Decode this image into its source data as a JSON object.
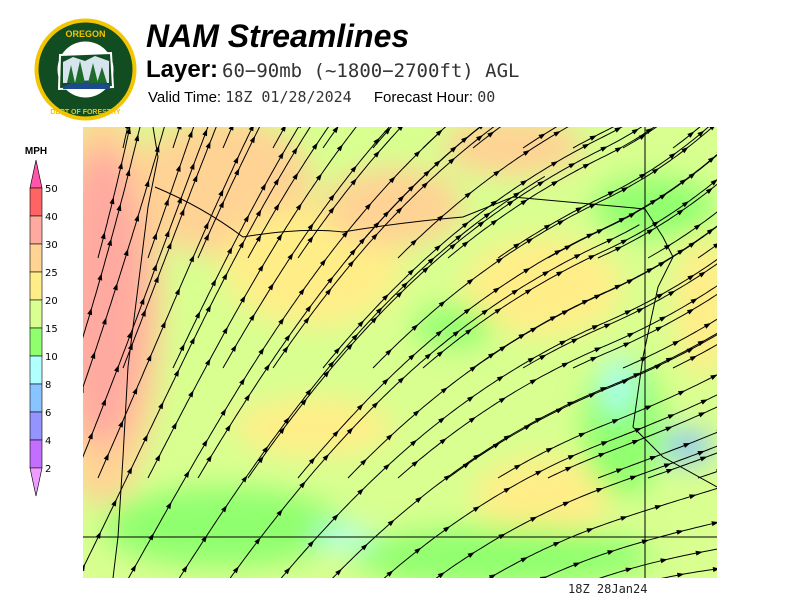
{
  "logo": {
    "text_top": "OREGON",
    "text_bottom": "DEPARTMENT OF FORESTRY"
  },
  "header": {
    "title": "NAM Streamlines",
    "layer_label": "Layer:",
    "layer_value": "60−90mb (~1800−2700ft) AGL",
    "valid_label": "Valid Time:",
    "valid_value": "18Z 01/28/2024",
    "forecast_label": "Forecast Hour:",
    "forecast_value": "00"
  },
  "legend": {
    "unit": "MPH",
    "ticks": [
      "50",
      "40",
      "30",
      "25",
      "20",
      "15",
      "10",
      "8",
      "6",
      "4",
      "2"
    ],
    "colors": {
      "over": "#ff55aa",
      "c40_50": "#ff6464",
      "c30_40": "#ffaaa0",
      "c25_30": "#ffd394",
      "c20_25": "#ffee88",
      "c15_20": "#d8ff90",
      "c10_15": "#90ff6e",
      "c8_10": "#b2ffff",
      "c6_8": "#88c4ff",
      "c4_6": "#9494ff",
      "c2_4": "#c46eff",
      "under": "#ee9cff"
    }
  },
  "footer": {
    "timestamp": "18Z 28Jan24"
  }
}
